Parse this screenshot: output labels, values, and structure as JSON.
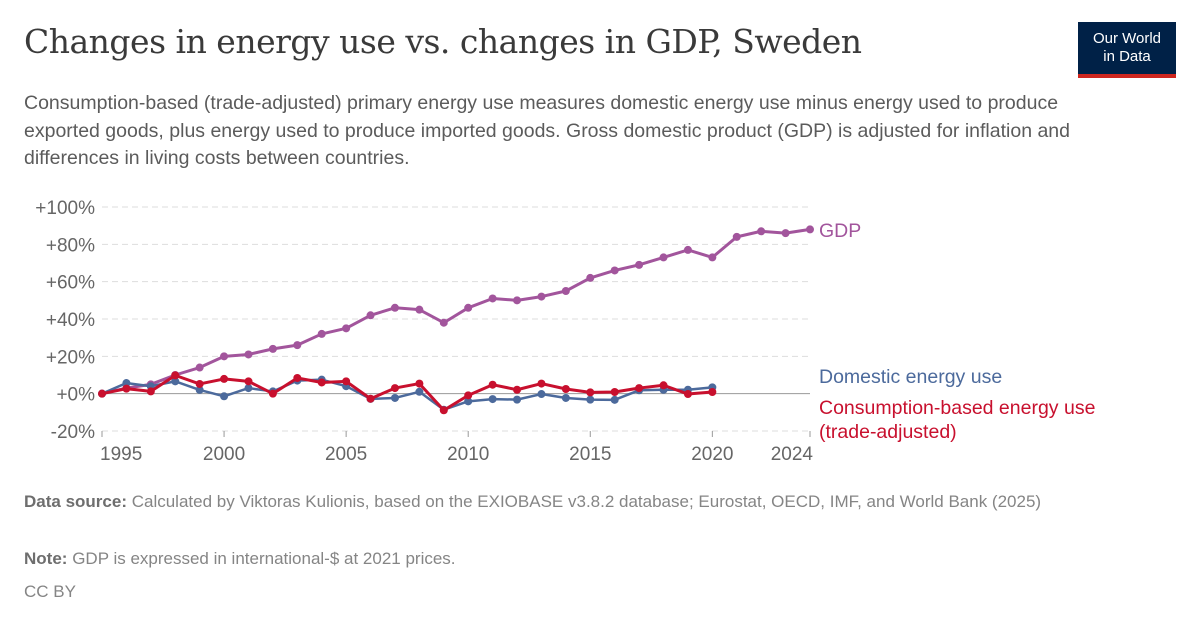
{
  "title": "Changes in energy use vs. changes in GDP, Sweden",
  "subtitle": "Consumption-based (trade-adjusted) primary energy use measures domestic energy use minus energy used to produce exported goods, plus energy used to produce imported goods. Gross domestic product (GDP) is adjusted for inflation and differences in living costs between countries.",
  "logo": {
    "line1": "Our World",
    "line2": "in Data",
    "bg": "#002147",
    "accent": "#ce261e"
  },
  "chart_data": {
    "type": "line",
    "ylim": [
      -20,
      100
    ],
    "y_ticks": [
      -20,
      0,
      20,
      40,
      60,
      80,
      100
    ],
    "y_tick_labels": [
      "-20%",
      "+0%",
      "+20%",
      "+40%",
      "+60%",
      "+80%",
      "+100%"
    ],
    "x_ticks": [
      1995,
      2000,
      2005,
      2010,
      2015,
      2020,
      2024
    ],
    "x_tick_labels": [
      "1995",
      "2000",
      "2005",
      "2010",
      "2015",
      "2020",
      "2024"
    ],
    "grid": "horizontal dashed",
    "legend": "right end labels",
    "series": [
      {
        "name": "GDP",
        "color": "#a2559c",
        "x": [
          1995,
          1996,
          1997,
          1998,
          1999,
          2000,
          2001,
          2002,
          2003,
          2004,
          2005,
          2006,
          2007,
          2008,
          2009,
          2010,
          2011,
          2012,
          2013,
          2014,
          2015,
          2016,
          2017,
          2018,
          2019,
          2020,
          2021,
          2022,
          2023,
          2024
        ],
        "values": [
          0,
          3,
          5,
          10,
          14,
          20,
          21,
          24,
          26,
          32,
          35,
          42,
          46,
          45,
          38,
          46,
          51,
          50,
          52,
          55,
          62,
          66,
          69,
          73,
          77,
          73,
          84,
          87,
          86,
          88
        ]
      },
      {
        "name": "Domestic energy use",
        "color": "#4c6a9c",
        "x": [
          1995,
          1996,
          1997,
          1998,
          1999,
          2000,
          2001,
          2002,
          2003,
          2004,
          2005,
          2006,
          2007,
          2008,
          2009,
          2010,
          2011,
          2012,
          2013,
          2014,
          2015,
          2016,
          2017,
          2018,
          2019,
          2020
        ],
        "values": [
          0,
          5.7,
          4,
          6.6,
          2,
          -1.4,
          3,
          1.2,
          7,
          7.5,
          4,
          -2.8,
          -2.3,
          1,
          -8.6,
          -4.1,
          -2.9,
          -3.2,
          -0.2,
          -2.3,
          -3.2,
          -3.3,
          1.8,
          2.1,
          2.1,
          3.4
        ]
      },
      {
        "name": "Consumption-based energy use (trade-adjusted)",
        "label_lines": [
          "Consumption-based energy use",
          "(trade-adjusted)"
        ],
        "color": "#c8102e",
        "x": [
          1995,
          1996,
          1997,
          1998,
          1999,
          2000,
          2001,
          2002,
          2003,
          2004,
          2005,
          2006,
          2007,
          2008,
          2009,
          2010,
          2011,
          2012,
          2013,
          2014,
          2015,
          2016,
          2017,
          2018,
          2019,
          2020
        ],
        "values": [
          0,
          2.7,
          1.2,
          9.8,
          5.2,
          7.9,
          6.6,
          0,
          8.4,
          6,
          6.6,
          -2.7,
          3,
          5.4,
          -8.9,
          -0.9,
          4.8,
          2.1,
          5.4,
          2.5,
          0.7,
          0.9,
          3,
          4.5,
          -0.2,
          0.9
        ]
      }
    ]
  },
  "footer": {
    "source_label": "Data source:",
    "source": "Calculated by Viktoras Kulionis, based on the EXIOBASE v3.8.2 database; Eurostat, OECD, IMF, and World Bank (2025)",
    "note_label": "Note:",
    "note": "GDP is expressed in international-$ at 2021 prices.",
    "license": "CC BY"
  }
}
